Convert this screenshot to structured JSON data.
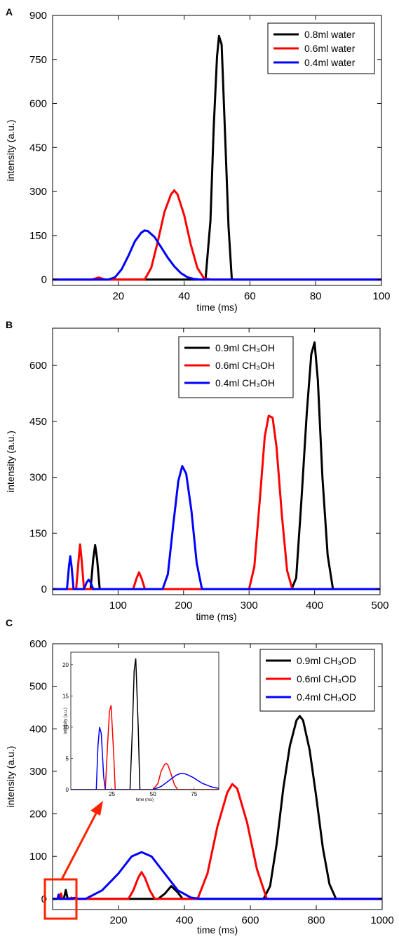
{
  "chart_data": [
    {
      "panel": "A",
      "type": "line",
      "xlabel": "time (ms)",
      "ylabel": "intensity (a.u.)",
      "xlim": [
        0,
        100
      ],
      "ylim": [
        -20,
        900
      ],
      "xticks": [
        20,
        40,
        60,
        80,
        100
      ],
      "yticks": [
        0,
        150,
        300,
        450,
        600,
        750,
        900
      ],
      "legend_position": "top-right",
      "series": [
        {
          "name": "0.8ml water",
          "color": "#000000",
          "x": [
            0,
            45,
            46.5,
            48,
            49,
            50,
            50.6,
            51.4,
            52.5,
            53.5,
            54.5,
            56,
            100
          ],
          "y": [
            0,
            0,
            0,
            200,
            520,
            760,
            830,
            800,
            480,
            180,
            0,
            0,
            0
          ]
        },
        {
          "name": "0.6ml water",
          "color": "#ff0000",
          "x": [
            0,
            12,
            14,
            16,
            28,
            30,
            32,
            34,
            36,
            37,
            38,
            40,
            42,
            44,
            46,
            48,
            100
          ],
          "y": [
            0,
            0,
            7,
            0,
            0,
            40,
            130,
            230,
            290,
            304,
            290,
            220,
            120,
            40,
            5,
            0,
            0
          ]
        },
        {
          "name": "0.4ml water",
          "color": "#0000ff",
          "x": [
            0,
            17,
            19,
            21,
            23,
            25,
            27,
            28,
            29,
            31,
            33,
            35,
            37,
            39,
            41,
            43,
            45,
            100
          ],
          "y": [
            0,
            0,
            8,
            35,
            80,
            130,
            160,
            167,
            165,
            145,
            110,
            75,
            45,
            22,
            8,
            2,
            0,
            0
          ]
        }
      ]
    },
    {
      "panel": "B",
      "type": "line",
      "xlabel": "time (ms)",
      "ylabel": "intensity (a.u.)",
      "xlim": [
        0,
        500
      ],
      "ylim": [
        -15,
        700
      ],
      "xticks": [
        100,
        200,
        300,
        400,
        500
      ],
      "yticks": [
        0,
        150,
        300,
        450,
        600
      ],
      "legend_position": "top-right",
      "series": [
        {
          "name": "0.9ml CH₃OH",
          "color": "#000000",
          "x": [
            0,
            58,
            62,
            65,
            68,
            72,
            365,
            372,
            380,
            388,
            395,
            400,
            405,
            412,
            420,
            428,
            500
          ],
          "y": [
            0,
            0,
            80,
            118,
            80,
            0,
            0,
            30,
            240,
            470,
            630,
            662,
            560,
            300,
            90,
            0,
            0
          ]
        },
        {
          "name": "0.6ml CH₃OH",
          "color": "#ff0000",
          "x": [
            0,
            36,
            40,
            42,
            44,
            48,
            123,
            128,
            132,
            136,
            141,
            300,
            308,
            316,
            324,
            330,
            336,
            342,
            350,
            358,
            366,
            500
          ],
          "y": [
            0,
            0,
            85,
            120,
            85,
            0,
            0,
            28,
            45,
            28,
            0,
            0,
            60,
            230,
            410,
            465,
            460,
            380,
            200,
            50,
            0,
            0
          ]
        },
        {
          "name": "0.4ml CH₃OH",
          "color": "#0000ff",
          "x": [
            0,
            22,
            25,
            27,
            29,
            32,
            48,
            52,
            55,
            58,
            62,
            168,
            176,
            184,
            192,
            198,
            204,
            212,
            220,
            228,
            500
          ],
          "y": [
            0,
            0,
            60,
            88,
            60,
            0,
            0,
            18,
            25,
            18,
            0,
            0,
            40,
            170,
            290,
            330,
            310,
            210,
            70,
            0,
            0
          ]
        }
      ]
    },
    {
      "panel": "C",
      "type": "line",
      "xlabel": "time (ms)",
      "ylabel": "intensity (a.u.)",
      "xlim": [
        0,
        1000
      ],
      "ylim": [
        -25,
        600
      ],
      "xticks": [
        200,
        400,
        600,
        800,
        1000
      ],
      "yticks": [
        0,
        100,
        200,
        300,
        400,
        500,
        600
      ],
      "legend_position": "top-right",
      "series": [
        {
          "name": "0.9ml CH₃OD",
          "color": "#000000",
          "x": [
            0,
            34,
            38,
            40,
            42,
            46,
            320,
            340,
            360,
            380,
            395,
            640,
            660,
            680,
            700,
            720,
            740,
            750,
            760,
            780,
            800,
            820,
            840,
            860,
            1000
          ],
          "y": [
            0,
            0,
            14,
            21,
            14,
            0,
            0,
            12,
            30,
            15,
            0,
            0,
            30,
            130,
            260,
            360,
            420,
            430,
            420,
            350,
            240,
            120,
            35,
            0,
            0
          ]
        },
        {
          "name": "0.6ml CH₃OD",
          "color": "#ff0000",
          "x": [
            0,
            21,
            23,
            25,
            27,
            29,
            50,
            57,
            62,
            70,
            230,
            245,
            260,
            270,
            280,
            295,
            310,
            440,
            470,
            500,
            530,
            545,
            560,
            590,
            620,
            650,
            1000
          ],
          "y": [
            0,
            0,
            9,
            13,
            9,
            0,
            0,
            3,
            1,
            0,
            0,
            20,
            50,
            63,
            50,
            20,
            0,
            0,
            60,
            170,
            250,
            270,
            260,
            180,
            70,
            0,
            0
          ]
        },
        {
          "name": "0.4ml CH₃OD",
          "color": "#0000ff",
          "x": [
            0,
            15,
            17,
            18,
            19,
            21,
            55,
            67,
            80,
            100,
            150,
            200,
            240,
            270,
            300,
            340,
            380,
            420,
            450,
            1000
          ],
          "y": [
            0,
            0,
            7,
            10,
            7,
            0,
            0,
            2.5,
            0,
            0,
            20,
            60,
            100,
            110,
            100,
            60,
            20,
            3,
            0,
            0
          ]
        }
      ]
    }
  ],
  "inset": {
    "xlabel": "time (ms)",
    "ylabel": "intensity (a.u.)",
    "xlim": [
      0,
      90
    ],
    "ylim": [
      0,
      22
    ],
    "xticks": [
      25,
      50,
      75
    ],
    "yticks": [
      0,
      5,
      10,
      15,
      20
    ],
    "series": [
      {
        "color": "#000000",
        "x": [
          0,
          34,
          36,
          37.5,
          38.5,
          39.5,
          41,
          42,
          90
        ],
        "y": [
          0,
          0,
          0,
          10,
          19,
          21,
          10,
          0,
          0
        ]
      },
      {
        "color": "#ff0000",
        "x": [
          0,
          19,
          21,
          22.5,
          23.5,
          24.5,
          26,
          27,
          50,
          53,
          55,
          57,
          58,
          59,
          61,
          63,
          65,
          90
        ],
        "y": [
          0,
          0,
          0,
          8,
          12.5,
          13.5,
          6,
          0,
          0,
          1,
          3,
          4,
          4.2,
          4,
          2.5,
          0.8,
          0,
          0
        ]
      },
      {
        "color": "#0000ff",
        "x": [
          0,
          14,
          15.5,
          16.5,
          17.5,
          18.5,
          20,
          21,
          50,
          55,
          60,
          64,
          67,
          70,
          74,
          80,
          86,
          90
        ],
        "y": [
          0,
          0,
          0,
          7,
          10,
          9,
          2,
          0,
          0,
          0.5,
          1.5,
          2.3,
          2.6,
          2.5,
          2,
          1,
          0.4,
          0.2
        ]
      }
    ]
  },
  "highlight": {
    "color": "#ff2200"
  }
}
